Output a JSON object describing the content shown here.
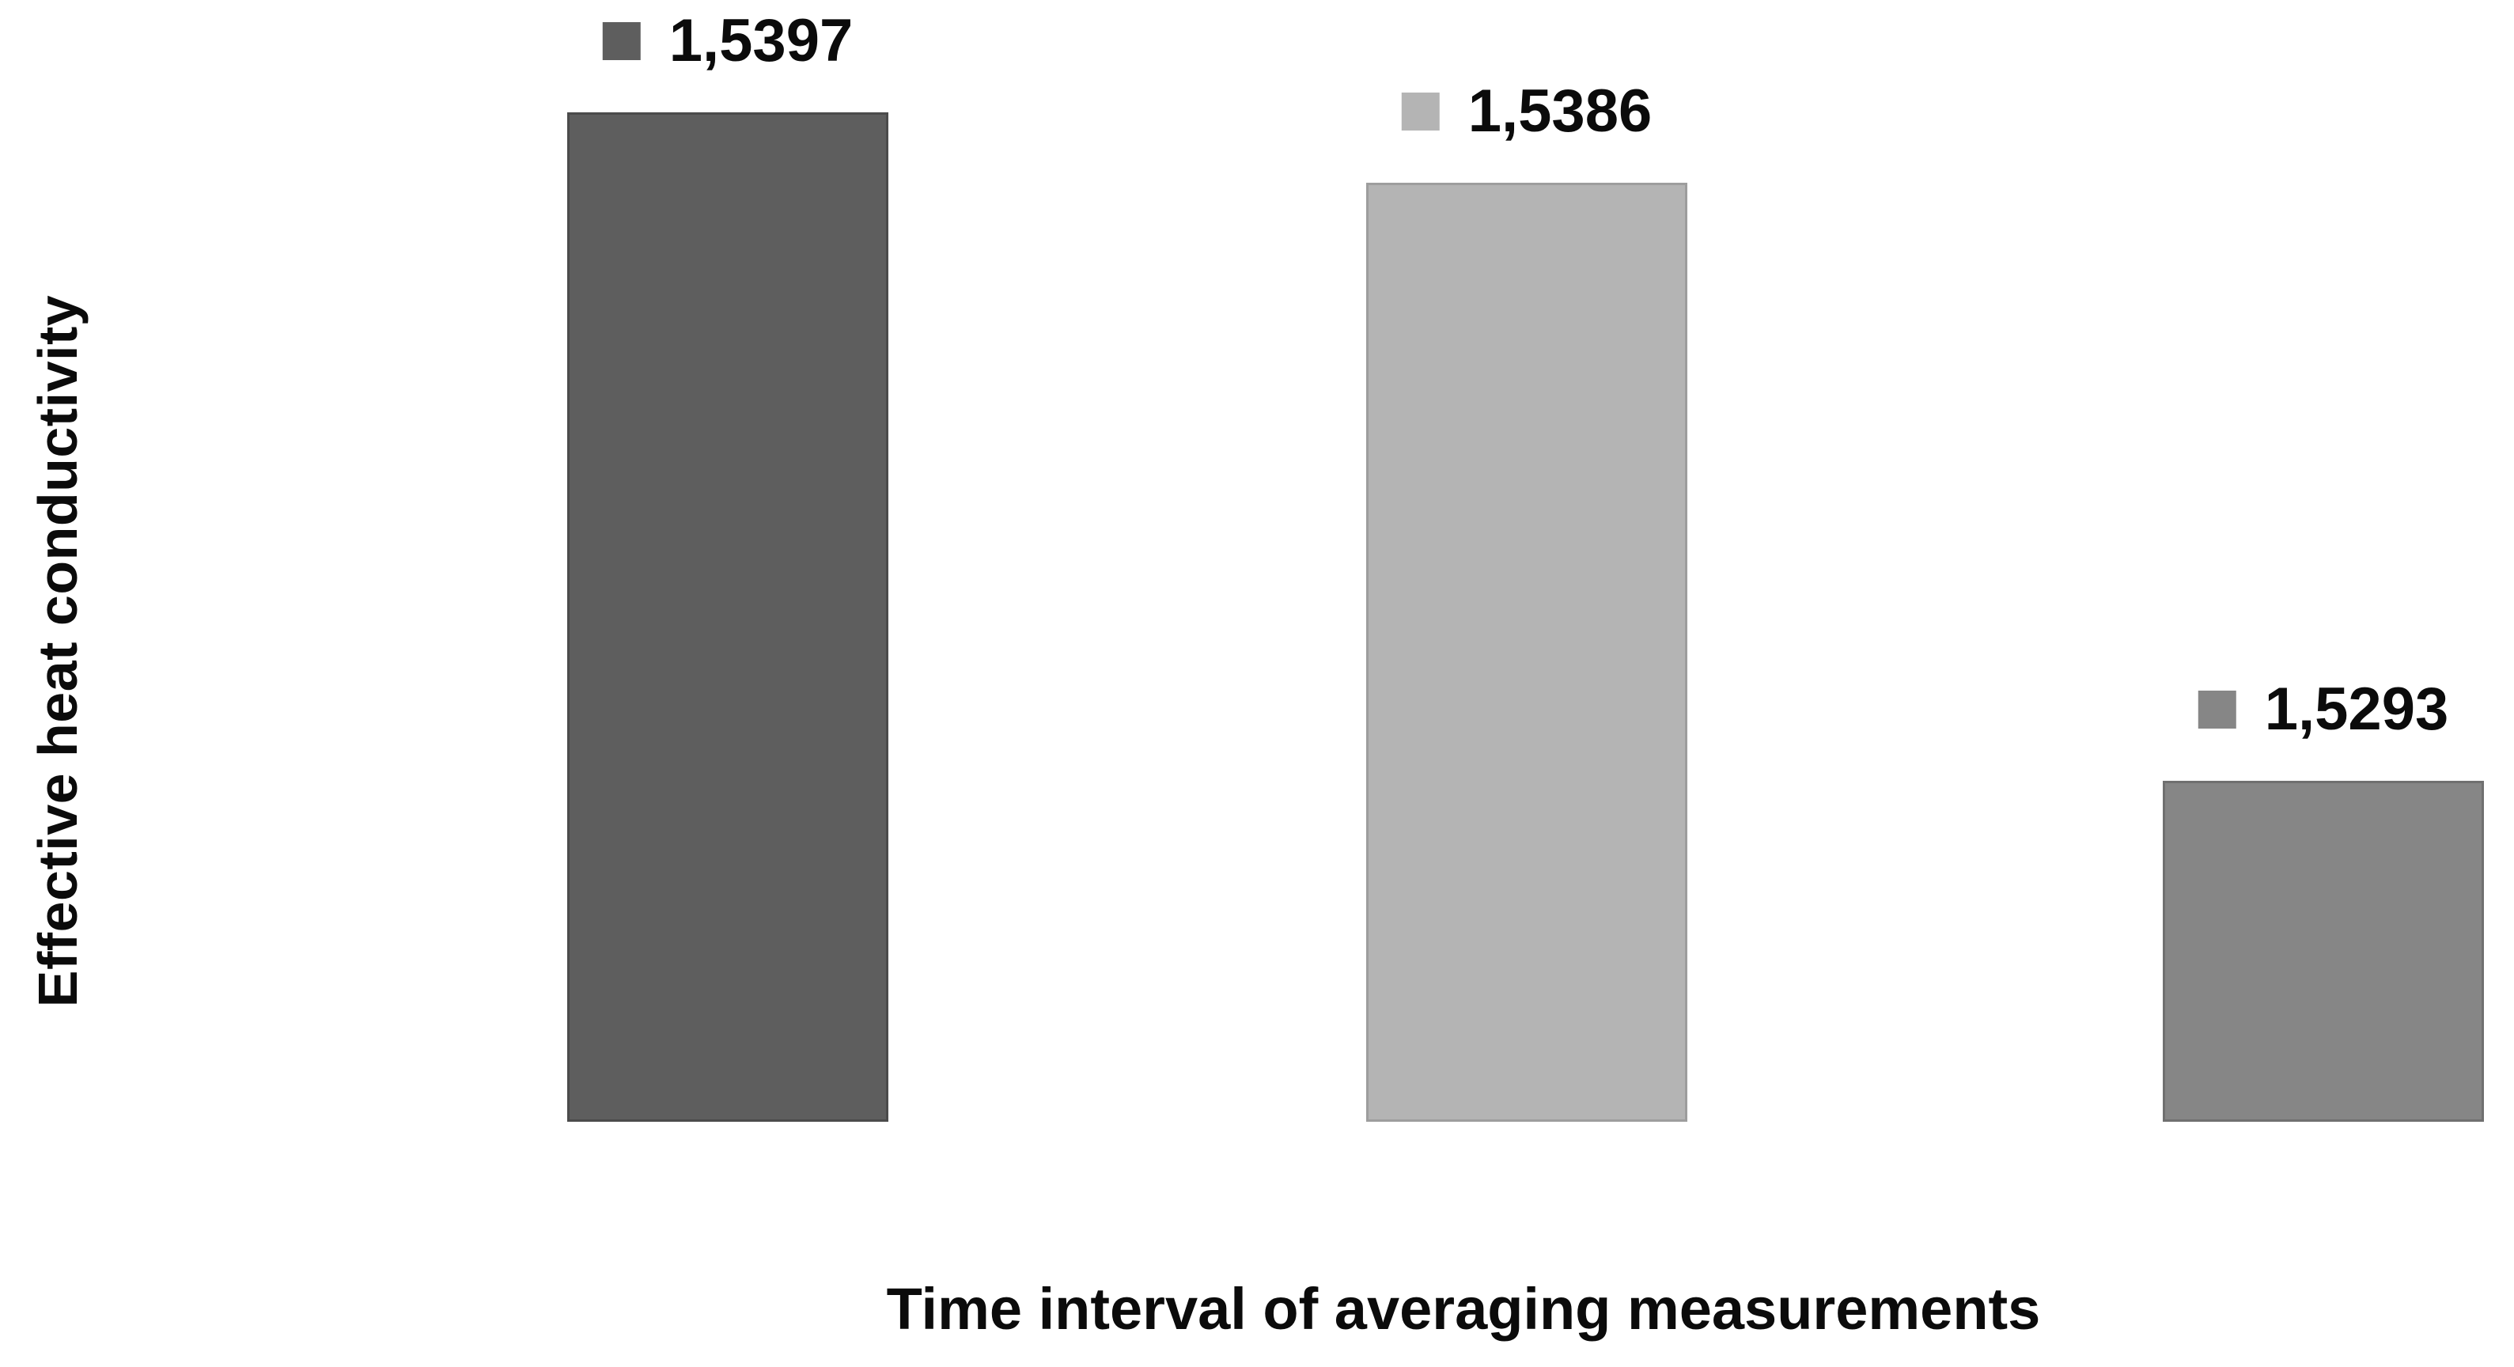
{
  "chart_data": {
    "type": "bar",
    "title": "",
    "xlabel": "Time interval of averaging measurements",
    "ylabel": "Effective heat conductivity",
    "categories": [
      "",
      "",
      ""
    ],
    "values": [
      1.5397,
      1.5386,
      1.5293
    ],
    "value_labels": [
      "1,5397",
      "1,5386",
      "1,5293"
    ],
    "bar_colors": [
      "#5e5e5e",
      "#b4b4b4",
      "#868686"
    ],
    "bar_border_colors": [
      "#4b4b4b",
      "#9d9d9d",
      "#707070"
    ],
    "text_color": "#0b0b0b",
    "background_color": "#ffffff",
    "ylim": [
      1.524,
      1.5415
    ],
    "grid": false,
    "axis_lines": false,
    "legend_position": "none",
    "data_labels_with_legend_keys": true
  }
}
